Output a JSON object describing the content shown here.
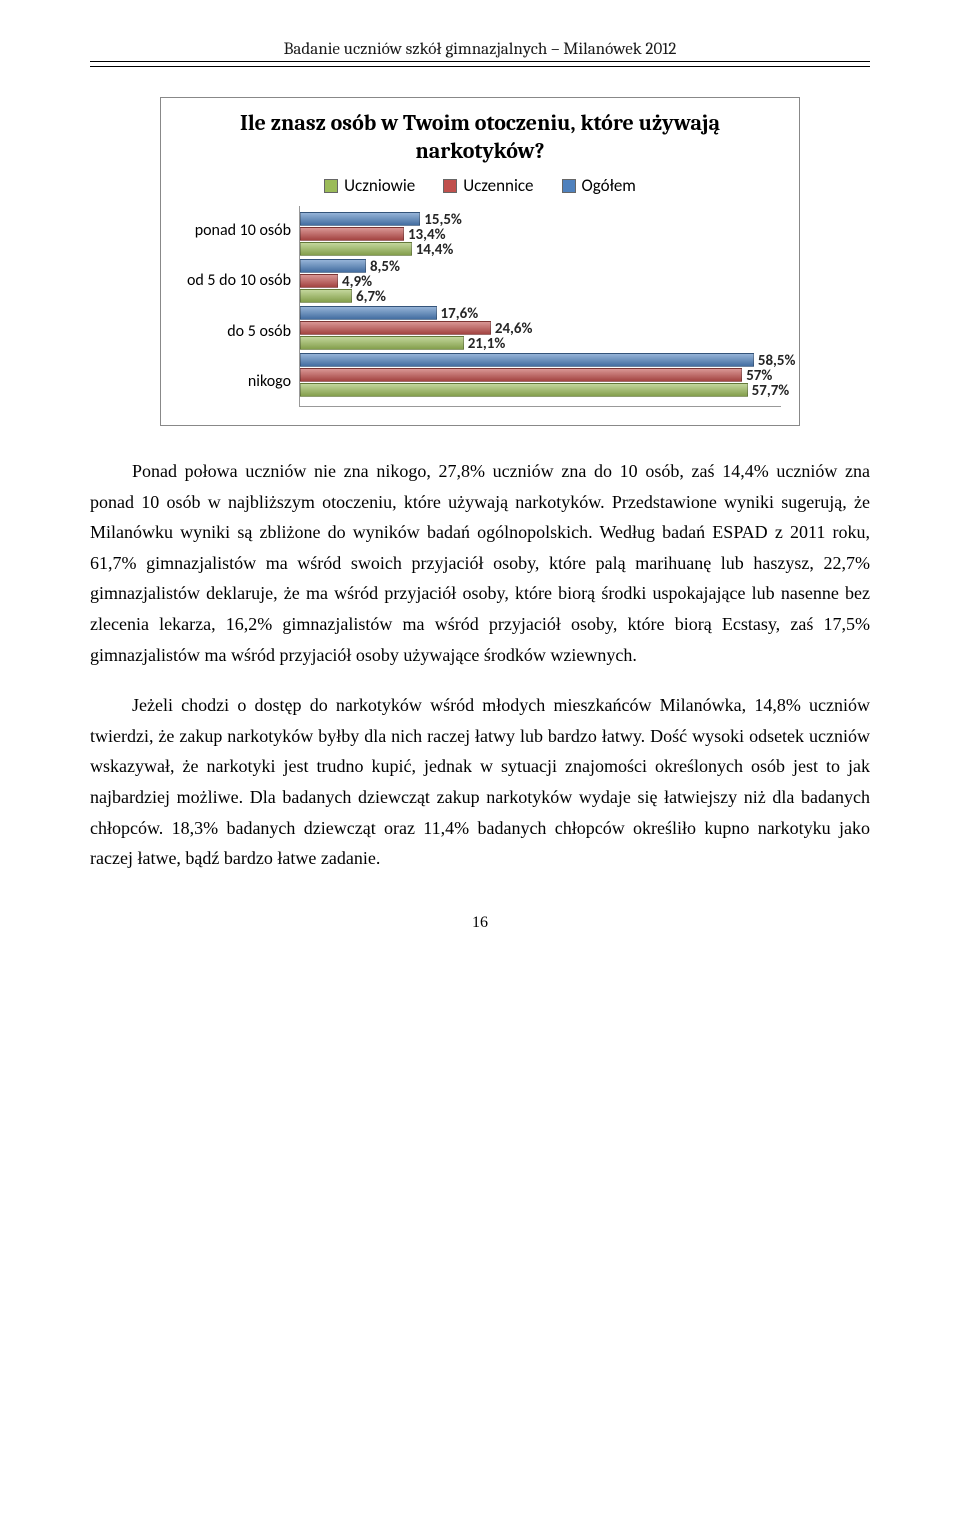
{
  "header": {
    "title": "Badanie uczniów szkół gimnazjalnych – Milanówek 2012"
  },
  "chart": {
    "type": "bar",
    "title": "Ile znasz osób w Twoim otoczeniu, które używają narkotyków?",
    "legend": [
      {
        "label": "Uczniowie",
        "color": "#9bbb59"
      },
      {
        "label": "Uczennice",
        "color": "#c0504d"
      },
      {
        "label": "Ogółem",
        "color": "#4f81bd"
      }
    ],
    "xmax": 62,
    "categories": [
      {
        "label": "ponad 10 osób",
        "bars": [
          {
            "value": 15.5,
            "label": "15,5%",
            "color": "#4f81bd"
          },
          {
            "value": 13.4,
            "label": "13,4%",
            "color": "#c0504d"
          },
          {
            "value": 14.4,
            "label": "14,4%",
            "color": "#9bbb59"
          }
        ]
      },
      {
        "label": "od 5 do 10 osób",
        "bars": [
          {
            "value": 8.5,
            "label": "8,5%",
            "color": "#4f81bd"
          },
          {
            "value": 4.9,
            "label": "4,9%",
            "color": "#c0504d"
          },
          {
            "value": 6.7,
            "label": "6,7%",
            "color": "#9bbb59"
          }
        ]
      },
      {
        "label": "do 5 osób",
        "bars": [
          {
            "value": 17.6,
            "label": "17,6%",
            "color": "#4f81bd"
          },
          {
            "value": 24.6,
            "label": "24,6%",
            "color": "#c0504d"
          },
          {
            "value": 21.1,
            "label": "21,1%",
            "color": "#9bbb59"
          }
        ]
      },
      {
        "label": "nikogo",
        "bars": [
          {
            "value": 58.5,
            "label": "58,5%",
            "color": "#4f81bd"
          },
          {
            "value": 57.0,
            "label": "57%",
            "color": "#c0504d"
          },
          {
            "value": 57.7,
            "label": "57,7%",
            "color": "#9bbb59"
          }
        ]
      }
    ],
    "title_fontsize": 22,
    "label_fontsize": 15,
    "background_color": "#ffffff",
    "border_color": "#888888"
  },
  "paragraphs": {
    "p1": "Ponad połowa uczniów nie zna nikogo, 27,8% uczniów zna do 10 osób, zaś 14,4% uczniów zna ponad 10 osób w najbliższym otoczeniu, które używają narkotyków. Przedstawione wyniki sugerują, że Milanówku wyniki są zbliżone do wyników badań ogólnopolskich. Według badań ESPAD z 2011 roku, 61,7% gimnazjalistów ma wśród swoich przyjaciół osoby, które palą marihuanę lub haszysz, 22,7% gimnazjalistów deklaruje, że ma wśród przyjaciół osoby, które biorą środki uspokajające lub nasenne bez zlecenia lekarza, 16,2% gimnazjalistów ma wśród przyjaciół osoby, które biorą Ecstasy, zaś 17,5% gimnazjalistów ma wśród przyjaciół osoby używające środków wziewnych.",
    "p2": "Jeżeli chodzi o dostęp do narkotyków wśród młodych mieszkańców Milanówka, 14,8% uczniów twierdzi, że zakup narkotyków byłby dla nich raczej łatwy lub bardzo łatwy. Dość wysoki odsetek uczniów wskazywał, że narkotyki jest trudno kupić, jednak w sytuacji znajomości określonych osób jest to jak najbardziej możliwe. Dla badanych dziewcząt zakup narkotyków wydaje się łatwiejszy niż dla badanych chłopców. 18,3% badanych dziewcząt oraz 11,4% badanych chłopców określiło kupno narkotyku jako raczej łatwe, bądź bardzo łatwe zadanie."
  },
  "page_number": "16"
}
